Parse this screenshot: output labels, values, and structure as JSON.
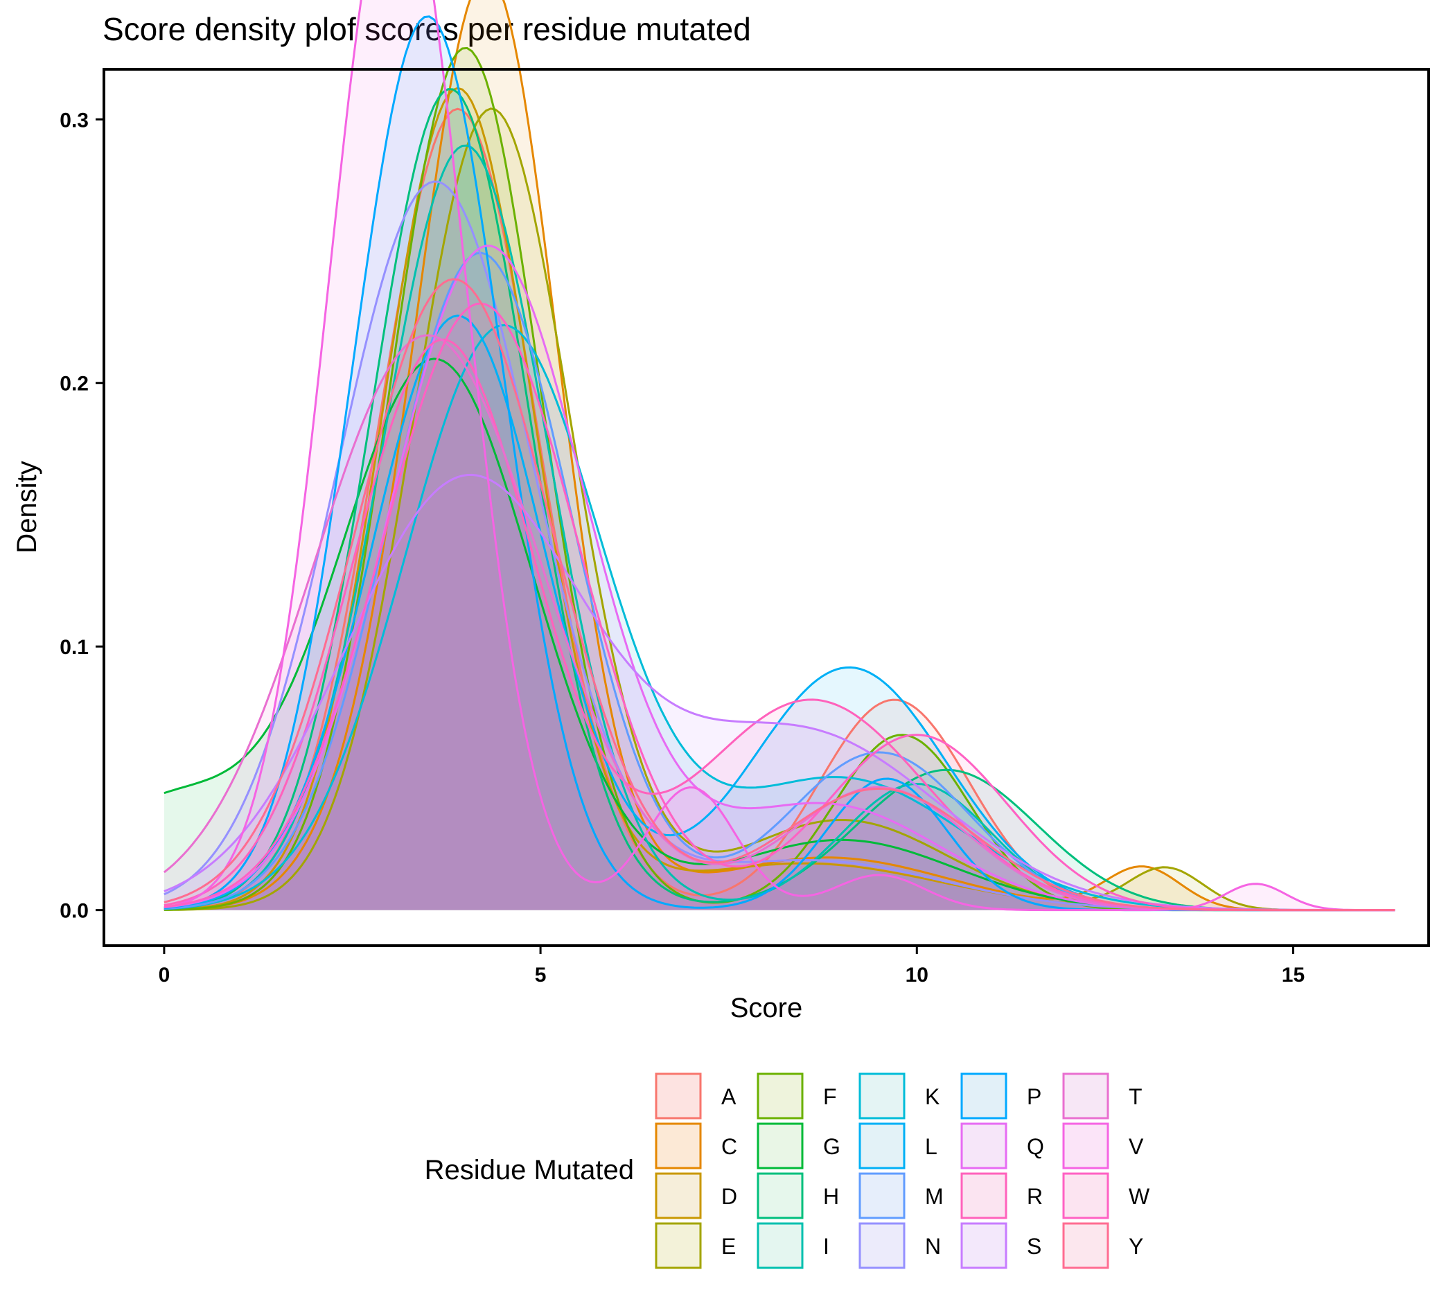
{
  "chart_data": {
    "type": "area",
    "title": "Score density plof scores per residue mutated",
    "xlabel": "Score",
    "ylabel": "Density",
    "xlim": [
      -0.8,
      16.8
    ],
    "ylim": [
      -0.0135,
      0.319
    ],
    "x_ticks": [
      0,
      5,
      10,
      15
    ],
    "y_ticks": [
      0.0,
      0.1,
      0.2,
      0.3
    ],
    "x_tick_labels": [
      "0",
      "5",
      "10",
      "15"
    ],
    "y_tick_labels": [
      "0.0",
      "0.1",
      "0.2",
      "0.3"
    ],
    "grid": false,
    "legend": {
      "title": "Residue Mutated",
      "position": "bottom",
      "columns": 5
    },
    "x_range": [
      0,
      16.35
    ],
    "series": [
      {
        "name": "A",
        "color": "#F8766D",
        "fill": "#FDE3E1",
        "components": [
          [
            0.8,
            3.9,
            1.05
          ],
          [
            0.2,
            9.7,
            1.0
          ]
        ]
      },
      {
        "name": "C",
        "color": "#E58700",
        "fill": "#FCE9D6",
        "components": [
          [
            0.76,
            4.35,
            0.9
          ],
          [
            0.1,
            3.1,
            0.9
          ],
          [
            0.08,
            8.8,
            1.6
          ],
          [
            0.02,
            13.0,
            0.5
          ]
        ]
      },
      {
        "name": "D",
        "color": "#C99800",
        "fill": "#F6EEDA",
        "components": [
          [
            0.78,
            3.9,
            1.0
          ],
          [
            0.08,
            8.5,
            1.8
          ]
        ]
      },
      {
        "name": "E",
        "color": "#A3A500",
        "fill": "#F3F2D9",
        "components": [
          [
            0.8,
            4.35,
            1.05
          ],
          [
            0.12,
            9.0,
            1.4
          ],
          [
            0.02,
            13.3,
            0.5
          ]
        ]
      },
      {
        "name": "F",
        "color": "#6BB100",
        "fill": "#EEF3DC",
        "components": [
          [
            0.82,
            4.0,
            1.0
          ],
          [
            0.15,
            9.8,
            0.9
          ]
        ]
      },
      {
        "name": "G",
        "color": "#00BA38",
        "fill": "#E9F6E6",
        "components": [
          [
            0.68,
            3.6,
            1.3
          ],
          [
            0.12,
            0.0,
            1.2
          ],
          [
            0.1,
            9.0,
            1.5
          ]
        ]
      },
      {
        "name": "H",
        "color": "#00BF7D",
        "fill": "#E6F7EC",
        "components": [
          [
            0.82,
            3.8,
            1.05
          ],
          [
            0.16,
            10.4,
            1.2
          ]
        ]
      },
      {
        "name": "I",
        "color": "#00C0AF",
        "fill": "#E4F6F0",
        "components": [
          [
            0.8,
            4.0,
            1.1
          ],
          [
            0.12,
            10.0,
            1.0
          ]
        ]
      },
      {
        "name": "K",
        "color": "#00BCD8",
        "fill": "#E4F4F4",
        "components": [
          [
            0.72,
            4.5,
            1.3
          ],
          [
            0.2,
            9.0,
            1.6
          ]
        ]
      },
      {
        "name": "L",
        "color": "#00B0F6",
        "fill": "#E3F2F7",
        "components": [
          [
            0.65,
            3.9,
            1.15
          ],
          [
            0.3,
            9.1,
            1.3
          ]
        ]
      },
      {
        "name": "M",
        "color": "#619CFF",
        "fill": "#E6EEFB",
        "components": [
          [
            0.75,
            4.2,
            1.2
          ],
          [
            0.18,
            9.5,
            1.2
          ]
        ]
      },
      {
        "name": "N",
        "color": "#9590FF",
        "fill": "#ECEBFB",
        "components": [
          [
            0.9,
            3.6,
            1.3
          ],
          [
            0.08,
            8.6,
            1.7
          ]
        ]
      },
      {
        "name": "P",
        "color": "#00A9FF",
        "fill": "#E2F0F8",
        "components": [
          [
            0.85,
            3.5,
            1.0
          ],
          [
            0.1,
            9.6,
            0.8
          ]
        ]
      },
      {
        "name": "Q",
        "color": "#E76BF3",
        "fill": "#F6E6F9",
        "components": [
          [
            0.82,
            4.3,
            1.3
          ],
          [
            0.15,
            8.8,
            1.5
          ]
        ]
      },
      {
        "name": "R",
        "color": "#FF62BC",
        "fill": "#FBE4F1",
        "components": [
          [
            0.65,
            3.7,
            1.2
          ],
          [
            0.3,
            8.6,
            1.5
          ]
        ]
      },
      {
        "name": "S",
        "color": "#C77CFF",
        "fill": "#F3E8FB",
        "components": [
          [
            0.65,
            4.0,
            1.6
          ],
          [
            0.3,
            8.5,
            1.8
          ]
        ]
      },
      {
        "name": "T",
        "color": "#E96FD0",
        "fill": "#F7E7F6",
        "components": [
          [
            0.82,
            3.5,
            1.5
          ],
          [
            0.14,
            9.5,
            1.2
          ]
        ]
      },
      {
        "name": "V",
        "color": "#F564E3",
        "fill": "#FBE4F8",
        "components": [
          [
            0.9,
            3.1,
            0.9
          ],
          [
            0.07,
            7.0,
            0.6
          ],
          [
            0.02,
            9.5,
            0.6
          ],
          [
            0.01,
            14.5,
            0.4
          ]
        ]
      },
      {
        "name": "W",
        "color": "#FF61C3",
        "fill": "#FCE4F1",
        "components": [
          [
            0.75,
            4.2,
            1.3
          ],
          [
            0.2,
            10.0,
            1.2
          ]
        ]
      },
      {
        "name": "Y",
        "color": "#FF6C91",
        "fill": "#FCE7EE",
        "components": [
          [
            0.78,
            3.85,
            1.3
          ],
          [
            0.15,
            9.5,
            1.3
          ]
        ]
      }
    ]
  }
}
